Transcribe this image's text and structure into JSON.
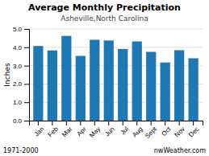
{
  "chart_data": {
    "type": "bar",
    "title": "Average Monthly Precipitation",
    "subtitle": "Asheville,North Carolina",
    "y_label": "Inches",
    "annotations": [
      "1971-2000",
      "nwWeather.com"
    ],
    "categories": [
      "Jan",
      "Feb",
      "Mar",
      "Apr",
      "May",
      "Jun",
      "Jul",
      "Aug",
      "Sept",
      "Oct",
      "Nov",
      "Dec"
    ],
    "values": [
      4.07,
      3.83,
      4.62,
      3.53,
      4.41,
      4.37,
      3.91,
      4.32,
      3.75,
      3.17,
      3.84,
      3.4
    ],
    "ylim": [
      0.0,
      5.0
    ],
    "yticks": [
      {
        "value": 0.0,
        "label": "0.0"
      },
      {
        "value": 1.0,
        "label": "1.0"
      },
      {
        "value": 2.0,
        "label": "2.0"
      },
      {
        "value": 3.0,
        "label": "3.0"
      },
      {
        "value": 4.0,
        "label": "4.0"
      },
      {
        "value": 5.0,
        "label": "5.0"
      }
    ],
    "grid": true
  }
}
